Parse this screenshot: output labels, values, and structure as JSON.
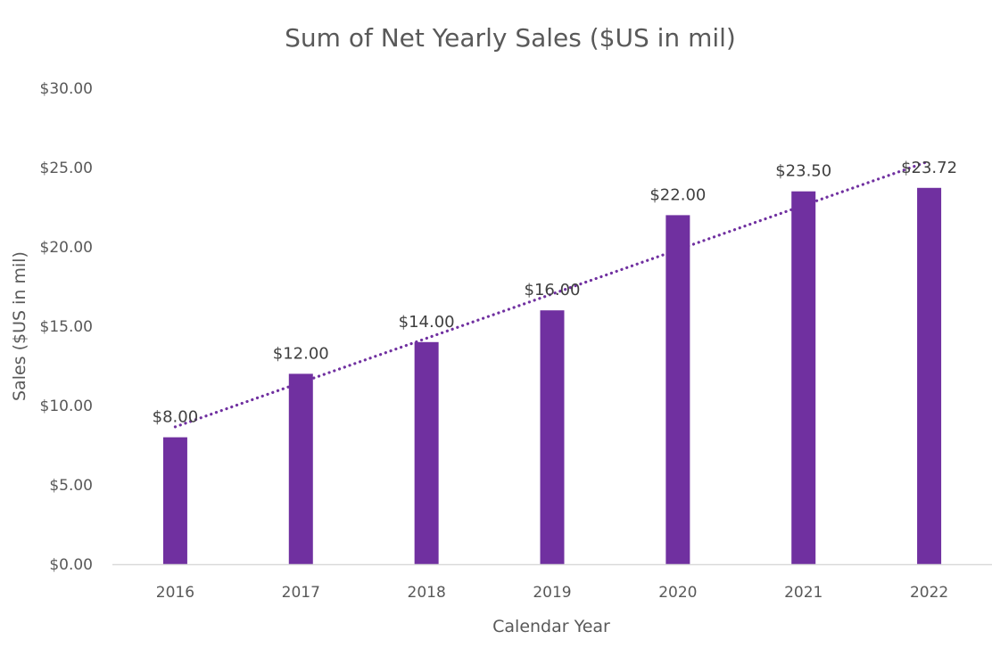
{
  "chart_data": {
    "type": "bar",
    "title": "Sum of Net Yearly Sales ($US in mil)",
    "xlabel": "Calendar Year",
    "ylabel": "Sales ($US in mil)",
    "categories": [
      "2016",
      "2017",
      "2018",
      "2019",
      "2020",
      "2021",
      "2022"
    ],
    "values": [
      8.0,
      12.0,
      14.0,
      16.0,
      22.0,
      23.5,
      23.72
    ],
    "data_labels": [
      "$8.00",
      "$12.00",
      "$14.00",
      "$16.00",
      "$22.00",
      "$23.50",
      "$23.72"
    ],
    "ylim": [
      0,
      30
    ],
    "y_ticks": [
      "$0.00",
      "$5.00",
      "$10.00",
      "$15.00",
      "$20.00",
      "$25.00",
      "$30.00"
    ],
    "y_tick_values": [
      0,
      5,
      10,
      15,
      20,
      25,
      30
    ],
    "gridlines": false,
    "legend": "none",
    "trendline": {
      "type": "linear",
      "style": "dotted",
      "color": "#7030A0"
    },
    "bar_color": "#7030A0",
    "text_color": "#595959",
    "axis_color": "#D9D9D9"
  }
}
